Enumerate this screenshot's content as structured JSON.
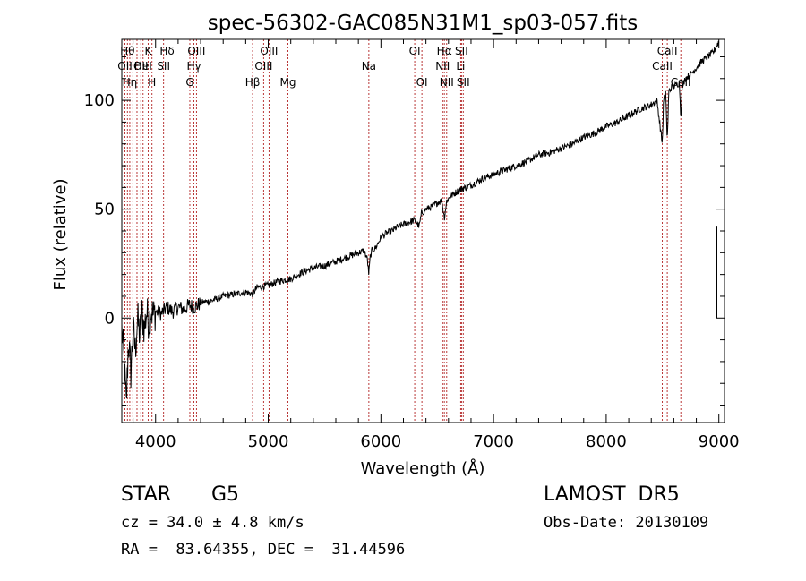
{
  "chart_data": {
    "type": "line",
    "title": "spec-56302-GAC085N31M1_sp03-057.fits",
    "xlabel": "Wavelength (Å)",
    "ylabel": "Flux (relative)",
    "xlim": [
      3700,
      9050
    ],
    "ylim": [
      -48,
      128
    ],
    "xticks": [
      4000,
      5000,
      6000,
      7000,
      8000,
      9000
    ],
    "xtick_labels": [
      "4000",
      "5000",
      "6000",
      "7000",
      "8000",
      "9000"
    ],
    "yticks": [
      0,
      50,
      100
    ],
    "ytick_labels": [
      "0",
      "50",
      "100"
    ],
    "grid": false,
    "line_color": "#000000",
    "marker_line_color": "#b22222",
    "series": [
      {
        "x": [
          3700,
          3720,
          3740,
          3760,
          3780,
          3800,
          3820,
          3840,
          3860,
          3880,
          3900,
          3920,
          3940,
          3960,
          3980,
          4000,
          4050,
          4100,
          4150,
          4200,
          4250,
          4300,
          4350,
          4400,
          4500,
          4600,
          4700,
          4800,
          4861,
          4900,
          5000,
          5100,
          5200,
          5300,
          5400,
          5500,
          5600,
          5700,
          5800,
          5850,
          5880,
          5893,
          5905,
          5920,
          5950,
          6000,
          6050,
          6100,
          6150,
          6200,
          6250,
          6300,
          6340,
          6360,
          6400,
          6450,
          6500,
          6540,
          6563,
          6585,
          6620,
          6700,
          6800,
          6900,
          7000,
          7100,
          7200,
          7300,
          7400,
          7500,
          7600,
          7700,
          7800,
          7900,
          8000,
          8100,
          8200,
          8300,
          8400,
          8450,
          8498,
          8510,
          8530,
          8542,
          8555,
          8580,
          8620,
          8650,
          8662,
          8675,
          8700,
          8750,
          8800,
          8850,
          8900,
          8950,
          9000
        ],
        "y": [
          -5,
          -20,
          -40,
          -10,
          -25,
          -5,
          -15,
          0,
          -8,
          2,
          -5,
          3,
          -2,
          4,
          1,
          3,
          2,
          5,
          3,
          5,
          4,
          6,
          5,
          7,
          8,
          10,
          11,
          12,
          11,
          14,
          15,
          17,
          18,
          21,
          23,
          24,
          26,
          28,
          30,
          31,
          27,
          20,
          28,
          31,
          32,
          37,
          39,
          40,
          42,
          43,
          44,
          45,
          42,
          48,
          50,
          51,
          53,
          54,
          46,
          54,
          56,
          59,
          61,
          64,
          66,
          68,
          70,
          72,
          75,
          76,
          78,
          80,
          83,
          85,
          88,
          90,
          93,
          96,
          98,
          100,
          80,
          101,
          103,
          80,
          104,
          106,
          107,
          108,
          92,
          106,
          110,
          112,
          115,
          118,
          120,
          122,
          127
        ]
      }
    ],
    "markers": [
      {
        "x": 3728,
        "label": "OII",
        "row": 2
      },
      {
        "x": 3750,
        "label": "Hθ",
        "row": 1
      },
      {
        "x": 3771,
        "label": "Hη",
        "row": 3
      },
      {
        "x": 3798,
        "label": "",
        "row": 0
      },
      {
        "x": 3835,
        "label": "",
        "row": 0
      },
      {
        "x": 3869,
        "label": "OII",
        "row": 2
      },
      {
        "x": 3889,
        "label": "HeI",
        "row": 2
      },
      {
        "x": 3934,
        "label": "K",
        "row": 1
      },
      {
        "x": 3968,
        "label": "H",
        "row": 3
      },
      {
        "x": 4071,
        "label": "SII",
        "row": 2
      },
      {
        "x": 4102,
        "label": "Hδ",
        "row": 1
      },
      {
        "x": 4304,
        "label": "G",
        "row": 3
      },
      {
        "x": 4340,
        "label": "Hγ",
        "row": 2
      },
      {
        "x": 4363,
        "label": "OIII",
        "row": 1
      },
      {
        "x": 4861,
        "label": "Hβ",
        "row": 3
      },
      {
        "x": 4959,
        "label": "OIII",
        "row": 2
      },
      {
        "x": 5007,
        "label": "OIII",
        "row": 1
      },
      {
        "x": 5175,
        "label": "Mg",
        "row": 3
      },
      {
        "x": 5893,
        "label": "Na",
        "row": 2
      },
      {
        "x": 6300,
        "label": "OI",
        "row": 1
      },
      {
        "x": 6364,
        "label": "OI",
        "row": 3
      },
      {
        "x": 6548,
        "label": "NII",
        "row": 2
      },
      {
        "x": 6563,
        "label": "Hα",
        "row": 1
      },
      {
        "x": 6584,
        "label": "NII",
        "row": 3
      },
      {
        "x": 6708,
        "label": "Li",
        "row": 2
      },
      {
        "x": 6716,
        "label": "SII",
        "row": 1
      },
      {
        "x": 6731,
        "label": "SII",
        "row": 3
      },
      {
        "x": 8498,
        "label": "CaII",
        "row": 2
      },
      {
        "x": 8542,
        "label": "CaII",
        "row": 1
      },
      {
        "x": 8662,
        "label": "CaII",
        "row": 3
      }
    ],
    "annotations": {
      "class_left": "STAR",
      "class_right": "G5",
      "survey": "LAMOST  DR5",
      "cz": "cz = 34.0 ± 4.8 km/s",
      "obs_date": "Obs-Date: 20130109",
      "coords": "RA =  83.64355, DEC =  31.44596"
    }
  }
}
